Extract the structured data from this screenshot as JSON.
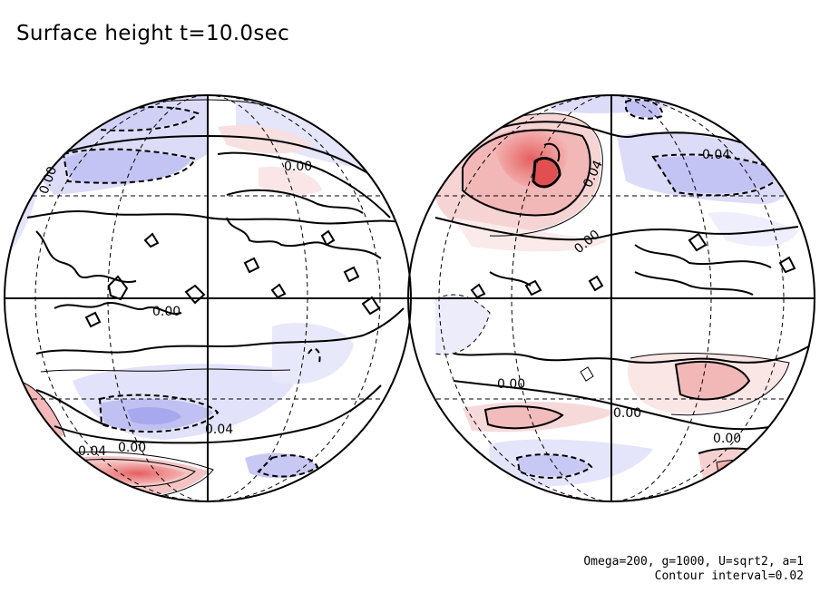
{
  "title": "Surface height t=10.0sec",
  "footer": {
    "params": "Omega=200, g=1000, U=sqrt2, a=1",
    "interval": "Contour interval=0.02"
  },
  "colors": {
    "positive": "#e86a6a",
    "negative": "#6a6ae8",
    "contour": "#000000"
  },
  "contour_labels": {
    "left": [
      "0.00",
      "0.00",
      "0.04",
      "0.00",
      "0.04",
      "0.00"
    ],
    "right": [
      "0.04",
      "0.04",
      "0.00",
      "0.00",
      "0.00",
      "0.00"
    ]
  }
}
